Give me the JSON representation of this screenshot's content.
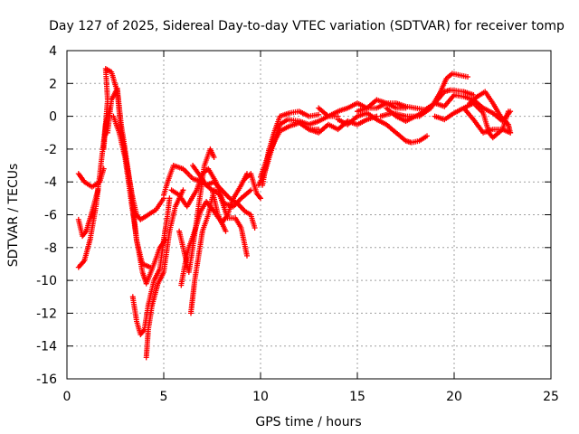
{
  "chart_data": {
    "type": "scatter",
    "title": "Day 127 of 2025, Sidereal Day-to-day VTEC variation (SDTVAR) for receiver tomp",
    "xlabel": "GPS time / hours",
    "ylabel": "SDTVAR / TECUs",
    "xlim": [
      0,
      25
    ],
    "ylim": [
      -16,
      4
    ],
    "xticks": [
      0,
      5,
      10,
      15,
      20,
      25
    ],
    "yticks": [
      -16,
      -14,
      -12,
      -10,
      -8,
      -6,
      -4,
      -2,
      0,
      2,
      4
    ],
    "grid": true,
    "marker": "plus",
    "color": "#ff0000",
    "series": [
      {
        "values": [
          [
            0.6,
            -3.5
          ],
          [
            0.9,
            -4.0
          ],
          [
            1.3,
            -4.3
          ],
          [
            1.7,
            -4.0
          ],
          [
            1.9,
            -3.2
          ]
        ]
      },
      {
        "values": [
          [
            0.6,
            -6.3
          ],
          [
            0.8,
            -7.3
          ],
          [
            1.0,
            -7.0
          ],
          [
            1.3,
            -5.8
          ],
          [
            1.6,
            -4.5
          ]
        ]
      },
      {
        "values": [
          [
            0.6,
            -9.2
          ],
          [
            0.9,
            -8.8
          ],
          [
            1.2,
            -7.5
          ],
          [
            1.5,
            -5.5
          ],
          [
            1.8,
            -2.5
          ],
          [
            2.0,
            -0.5
          ],
          [
            2.2,
            0.5
          ]
        ]
      },
      {
        "values": [
          [
            1.9,
            -2.0
          ],
          [
            2.1,
            1.0
          ],
          [
            2.0,
            2.9
          ],
          [
            2.3,
            2.7
          ],
          [
            2.6,
            1.5
          ],
          [
            2.8,
            -1.0
          ],
          [
            3.1,
            -3.0
          ],
          [
            3.4,
            -5.0
          ],
          [
            3.6,
            -6.0
          ],
          [
            3.8,
            -6.3
          ],
          [
            4.2,
            -6.0
          ],
          [
            4.6,
            -5.7
          ],
          [
            5.0,
            -5.0
          ]
        ]
      },
      {
        "values": [
          [
            2.1,
            -1.0
          ],
          [
            2.3,
            1.0
          ],
          [
            2.6,
            1.7
          ],
          [
            2.8,
            -0.5
          ],
          [
            3.0,
            -2.0
          ],
          [
            3.3,
            -4.5
          ],
          [
            3.5,
            -6.5
          ],
          [
            3.6,
            -7.6
          ],
          [
            3.9,
            -9.0
          ],
          [
            4.3,
            -9.2
          ]
        ]
      },
      {
        "values": [
          [
            2.4,
            0.0
          ],
          [
            2.7,
            -1.0
          ],
          [
            3.0,
            -2.5
          ],
          [
            3.3,
            -5.0
          ],
          [
            3.6,
            -7.5
          ],
          [
            3.9,
            -9.5
          ],
          [
            4.1,
            -10.2
          ],
          [
            4.5,
            -9.0
          ],
          [
            4.8,
            -8.0
          ],
          [
            5.1,
            -7.5
          ]
        ]
      },
      {
        "values": [
          [
            3.4,
            -11.0
          ],
          [
            3.6,
            -12.5
          ],
          [
            3.8,
            -13.3
          ],
          [
            4.0,
            -13.0
          ],
          [
            4.2,
            -11.5
          ],
          [
            4.5,
            -10.0
          ],
          [
            4.8,
            -9.3
          ],
          [
            5.0,
            -7.5
          ],
          [
            5.2,
            -6.0
          ],
          [
            5.3,
            -5.0
          ]
        ]
      },
      {
        "values": [
          [
            4.1,
            -14.7
          ],
          [
            4.2,
            -13.0
          ],
          [
            4.4,
            -11.5
          ],
          [
            4.7,
            -10.2
          ],
          [
            5.0,
            -9.5
          ],
          [
            5.3,
            -7.0
          ],
          [
            5.6,
            -5.5
          ],
          [
            6.0,
            -4.5
          ]
        ]
      },
      {
        "values": [
          [
            5.4,
            -4.5
          ],
          [
            5.8,
            -4.8
          ],
          [
            6.2,
            -5.5
          ],
          [
            6.7,
            -4.5
          ],
          [
            7.0,
            -3.5
          ],
          [
            7.3,
            -3.2
          ],
          [
            7.7,
            -4.0
          ],
          [
            8.1,
            -5.3
          ],
          [
            8.6,
            -5.5
          ],
          [
            9.0,
            -5.0
          ],
          [
            9.5,
            -4.5
          ]
        ]
      },
      {
        "values": [
          [
            5.8,
            -7.0
          ],
          [
            6.1,
            -8.5
          ],
          [
            6.3,
            -9.5
          ],
          [
            6.5,
            -8.0
          ],
          [
            6.8,
            -5.5
          ],
          [
            7.1,
            -3.0
          ],
          [
            7.4,
            -2.0
          ],
          [
            7.6,
            -2.5
          ]
        ]
      },
      {
        "values": [
          [
            5.9,
            -10.3
          ],
          [
            6.1,
            -9.0
          ],
          [
            6.3,
            -8.0
          ],
          [
            6.6,
            -7.0
          ],
          [
            6.9,
            -5.8
          ],
          [
            7.2,
            -5.2
          ],
          [
            7.6,
            -5.8
          ],
          [
            8.0,
            -6.5
          ],
          [
            8.3,
            -6.0
          ],
          [
            8.6,
            -5.0
          ],
          [
            9.0,
            -4.2
          ],
          [
            9.3,
            -3.5
          ]
        ]
      },
      {
        "values": [
          [
            6.4,
            -12.0
          ],
          [
            6.5,
            -11.0
          ],
          [
            6.6,
            -10.0
          ],
          [
            6.8,
            -8.5
          ],
          [
            7.0,
            -7.0
          ],
          [
            7.3,
            -6.0
          ],
          [
            7.6,
            -4.5
          ],
          [
            7.9,
            -4.8
          ],
          [
            8.3,
            -6.2
          ],
          [
            8.7,
            -6.2
          ],
          [
            9.0,
            -6.8
          ],
          [
            9.3,
            -8.5
          ]
        ]
      },
      {
        "values": [
          [
            5.0,
            -4.8
          ],
          [
            5.2,
            -4.0
          ],
          [
            5.5,
            -3.0
          ],
          [
            6.0,
            -3.2
          ],
          [
            6.5,
            -3.8
          ],
          [
            7.0,
            -4.0
          ],
          [
            7.5,
            -4.5
          ],
          [
            7.8,
            -6.0
          ],
          [
            8.2,
            -7.0
          ]
        ]
      },
      {
        "values": [
          [
            6.5,
            -3.0
          ],
          [
            6.8,
            -3.5
          ],
          [
            7.2,
            -4.2
          ],
          [
            7.6,
            -4.0
          ],
          [
            8.0,
            -4.5
          ],
          [
            8.4,
            -5.0
          ],
          [
            8.8,
            -5.3
          ],
          [
            9.2,
            -5.8
          ],
          [
            9.5,
            -6.0
          ],
          [
            9.7,
            -6.8
          ]
        ]
      },
      {
        "values": [
          [
            9.2,
            -3.8
          ],
          [
            9.5,
            -3.5
          ],
          [
            9.8,
            -4.7
          ],
          [
            10.0,
            -5.0
          ]
        ]
      },
      {
        "values": [
          [
            9.9,
            -4.2
          ],
          [
            10.2,
            -3.5
          ],
          [
            10.5,
            -2.3
          ],
          [
            10.8,
            -1.2
          ],
          [
            11.0,
            -0.5
          ],
          [
            11.4,
            -0.2
          ],
          [
            12.0,
            -0.3
          ],
          [
            12.5,
            -0.5
          ],
          [
            13.0,
            -0.3
          ],
          [
            13.5,
            0.0
          ],
          [
            14.0,
            0.0
          ]
        ]
      },
      {
        "values": [
          [
            10.0,
            -3.7
          ],
          [
            10.3,
            -2.7
          ],
          [
            10.6,
            -1.8
          ],
          [
            11.0,
            -0.9
          ],
          [
            11.5,
            -0.6
          ],
          [
            12.0,
            -0.4
          ],
          [
            12.5,
            -0.8
          ],
          [
            13.0,
            -0.8
          ]
        ]
      },
      {
        "values": [
          [
            10.1,
            -4.2
          ],
          [
            10.4,
            -2.2
          ],
          [
            10.7,
            -1.0
          ],
          [
            11.0,
            0.0
          ],
          [
            11.5,
            0.2
          ],
          [
            12.0,
            0.3
          ],
          [
            12.5,
            0.0
          ],
          [
            13.0,
            0.1
          ]
        ]
      },
      {
        "values": [
          [
            12.5,
            -0.8
          ],
          [
            13.0,
            -1.0
          ],
          [
            13.5,
            -0.5
          ],
          [
            14.0,
            -0.8
          ],
          [
            14.5,
            -0.3
          ],
          [
            15.0,
            -0.5
          ],
          [
            15.5,
            -0.2
          ],
          [
            16.0,
            0.0
          ]
        ]
      },
      {
        "values": [
          [
            13.0,
            0.5
          ],
          [
            13.5,
            0.0
          ],
          [
            14.0,
            0.3
          ],
          [
            14.5,
            0.5
          ],
          [
            15.0,
            0.8
          ],
          [
            15.5,
            0.5
          ],
          [
            16.0,
            0.5
          ],
          [
            16.5,
            0.8
          ],
          [
            17.0,
            0.5
          ],
          [
            17.5,
            0.5
          ]
        ]
      },
      {
        "values": [
          [
            14.0,
            -0.2
          ],
          [
            14.5,
            -0.5
          ],
          [
            15.0,
            0.0
          ],
          [
            15.5,
            0.2
          ],
          [
            16.0,
            -0.2
          ],
          [
            16.5,
            -0.5
          ],
          [
            17.0,
            -1.0
          ],
          [
            17.5,
            -1.5
          ],
          [
            17.8,
            -1.6
          ],
          [
            18.2,
            -1.5
          ],
          [
            18.6,
            -1.2
          ]
        ]
      },
      {
        "values": [
          [
            15.0,
            0.3
          ],
          [
            15.5,
            0.5
          ],
          [
            16.0,
            1.0
          ],
          [
            16.5,
            0.8
          ],
          [
            17.0,
            0.8
          ],
          [
            17.5,
            0.6
          ],
          [
            18.0,
            0.5
          ],
          [
            18.5,
            0.4
          ],
          [
            19.0,
            0.8
          ],
          [
            19.5,
            1.5
          ],
          [
            19.8,
            1.6
          ],
          [
            20.5,
            1.5
          ],
          [
            21.0,
            1.3
          ]
        ]
      },
      {
        "values": [
          [
            16.2,
            0.0
          ],
          [
            16.8,
            0.2
          ],
          [
            17.5,
            0.0
          ],
          [
            18.2,
            0.0
          ],
          [
            18.8,
            0.5
          ],
          [
            19.3,
            1.5
          ],
          [
            19.6,
            2.3
          ],
          [
            19.9,
            2.6
          ],
          [
            20.3,
            2.5
          ],
          [
            20.7,
            2.4
          ]
        ]
      },
      {
        "values": [
          [
            16.5,
            0.5
          ],
          [
            17.0,
            0.0
          ],
          [
            17.5,
            -0.3
          ],
          [
            18.0,
            0.0
          ],
          [
            18.5,
            0.3
          ],
          [
            19.0,
            0.8
          ],
          [
            19.5,
            0.6
          ],
          [
            20.0,
            1.3
          ],
          [
            20.5,
            1.2
          ],
          [
            21.0,
            1.0
          ],
          [
            21.5,
            0.5
          ],
          [
            22.0,
            0.2
          ],
          [
            22.5,
            -0.3
          ],
          [
            22.9,
            0.3
          ]
        ]
      },
      {
        "values": [
          [
            19.0,
            0.0
          ],
          [
            19.5,
            -0.2
          ],
          [
            20.0,
            0.2
          ],
          [
            20.5,
            0.5
          ],
          [
            21.0,
            -0.2
          ],
          [
            21.5,
            -1.0
          ],
          [
            22.0,
            -0.8
          ],
          [
            22.5,
            -0.8
          ],
          [
            22.9,
            -1.0
          ]
        ]
      },
      {
        "values": [
          [
            20.8,
            0.8
          ],
          [
            21.2,
            1.2
          ],
          [
            21.6,
            1.5
          ],
          [
            22.0,
            0.8
          ],
          [
            22.4,
            0.0
          ],
          [
            22.8,
            -0.5
          ],
          [
            22.9,
            -1.0
          ]
        ]
      },
      {
        "values": [
          [
            20.5,
            0.5
          ],
          [
            21.0,
            0.8
          ],
          [
            21.5,
            0.2
          ],
          [
            21.8,
            -1.0
          ],
          [
            22.0,
            -1.3
          ],
          [
            22.5,
            -0.8
          ],
          [
            22.8,
            0.3
          ]
        ]
      }
    ]
  }
}
